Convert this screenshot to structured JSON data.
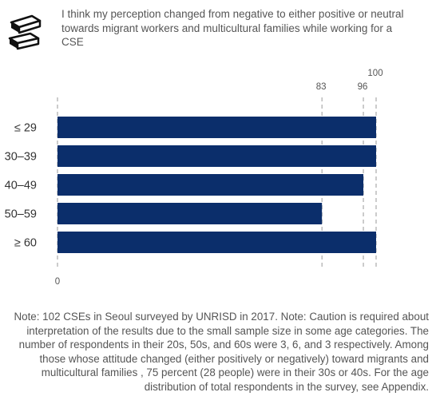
{
  "header": {
    "icon": "books-icon",
    "text": "I think my perception changed from negative to either positive or neutral towards migrant workers and multicultural families while working for a CSE"
  },
  "chart_data": {
    "type": "bar",
    "orientation": "horizontal",
    "categories": [
      "≤ 29",
      "30–39",
      "40–49",
      "50–59",
      "≥ 60"
    ],
    "values": [
      100,
      100,
      96,
      83,
      100
    ],
    "xlim": [
      0,
      100
    ],
    "reference_lines": [
      {
        "value": 0,
        "label": "0"
      },
      {
        "value": 83,
        "label": "83"
      },
      {
        "value": 96,
        "label": "96"
      },
      {
        "value": 100,
        "label": "100"
      }
    ],
    "bar_color": "#0b2e6b",
    "title": "",
    "xlabel": "",
    "ylabel": ""
  },
  "note": "Note: 102 CSEs in Seoul surveyed by UNRISD in 2017. Note: Caution is required about interpretation of the results due to the small sample size in some age categories. The number of respondents in their 20s, 50s, and 60s were 3, 6, and 3 respectively. Among those whose attitude changed (either positively or negatively) toward migrants and multicultural families , 75 percent (28 people) were in their 30s or 40s. For the age distribution of total respondents in the survey, see Appendix."
}
